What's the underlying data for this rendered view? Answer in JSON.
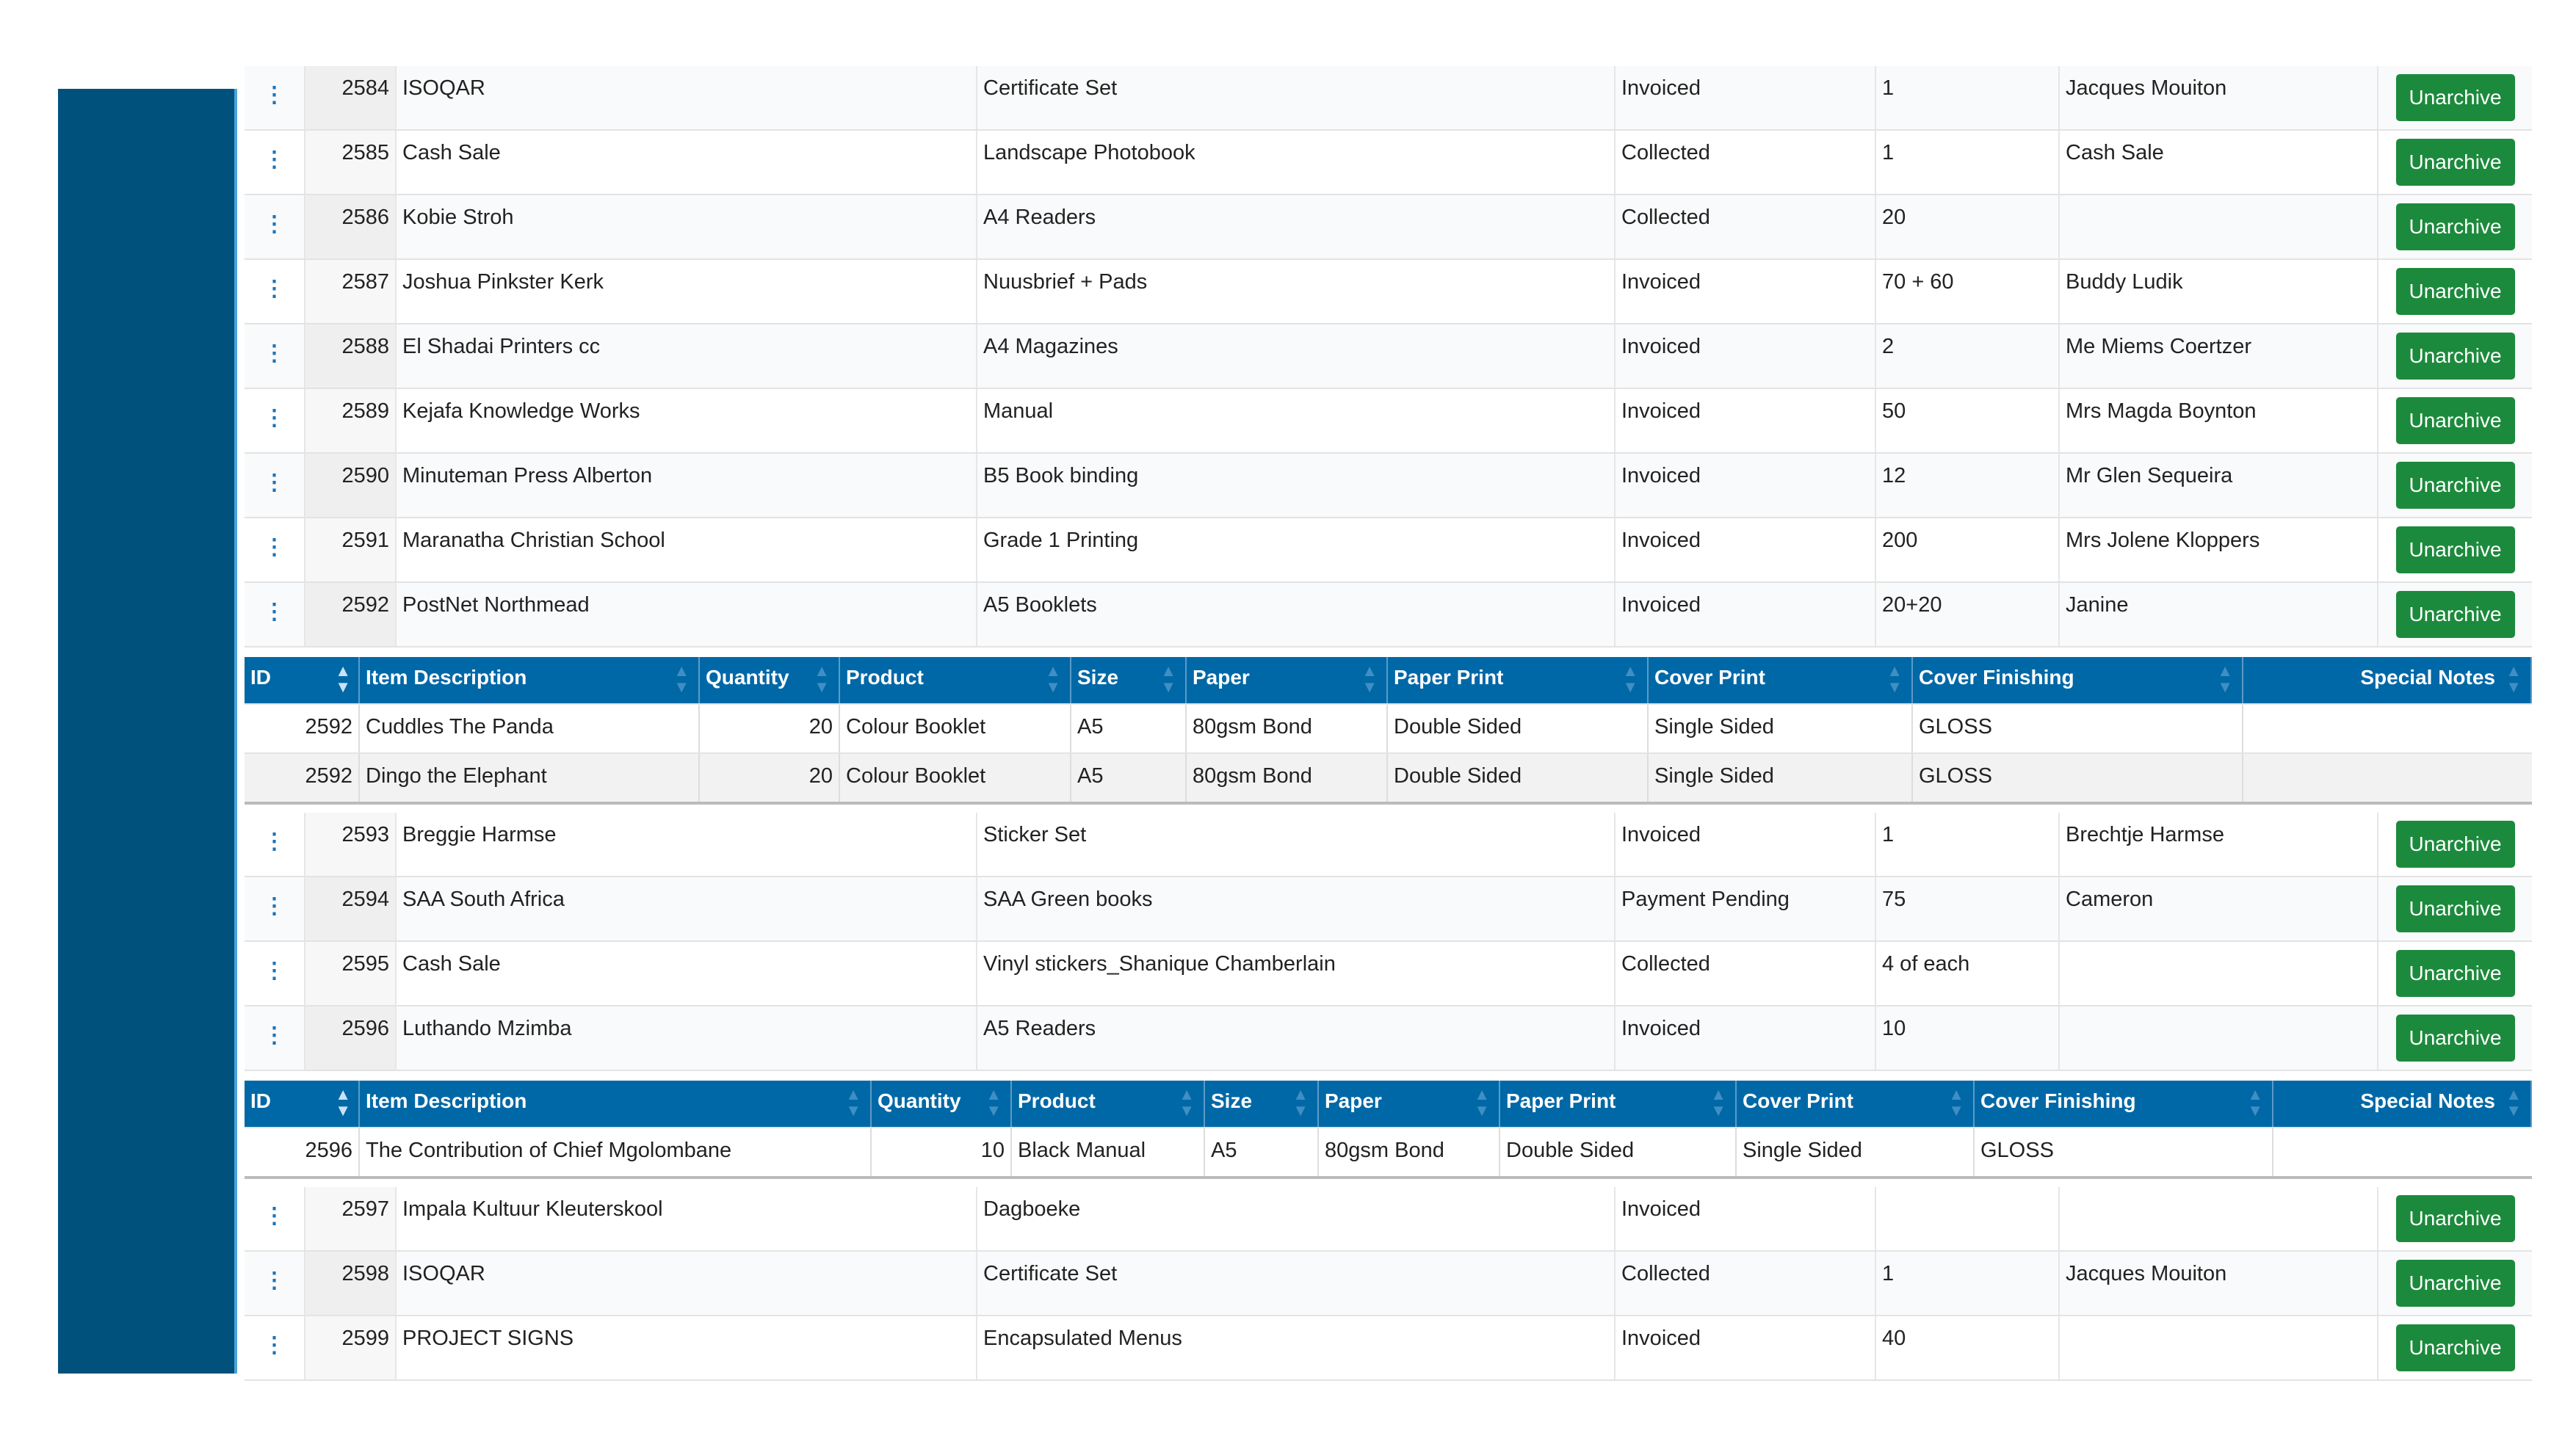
{
  "colors": {
    "sidebar": "#00527c",
    "header": "#0068a6",
    "button": "#1c8a3c"
  },
  "orders": [
    {
      "id": "2584",
      "customer": "ISOQAR",
      "product": "Certificate Set",
      "status": "Invoiced",
      "qty": "1",
      "contact": "Jacques Mouiton",
      "action": "Unarchive"
    },
    {
      "id": "2585",
      "customer": "Cash Sale",
      "product": "Landscape Photobook",
      "status": "Collected",
      "qty": "1",
      "contact": "Cash Sale",
      "action": "Unarchive"
    },
    {
      "id": "2586",
      "customer": "Kobie Stroh",
      "product": "A4 Readers",
      "status": "Collected",
      "qty": "20",
      "contact": "",
      "action": "Unarchive"
    },
    {
      "id": "2587",
      "customer": "Joshua Pinkster Kerk",
      "product": "Nuusbrief + Pads",
      "status": "Invoiced",
      "qty": "70 + 60",
      "contact": "Buddy Ludik",
      "action": "Unarchive"
    },
    {
      "id": "2588",
      "customer": "El Shadai Printers cc",
      "product": "A4 Magazines",
      "status": "Invoiced",
      "qty": "2",
      "contact": "Me Miems Coertzer",
      "action": "Unarchive"
    },
    {
      "id": "2589",
      "customer": "Kejafa Knowledge Works",
      "product": "Manual",
      "status": "Invoiced",
      "qty": "50",
      "contact": "Mrs Magda Boynton",
      "action": "Unarchive"
    },
    {
      "id": "2590",
      "customer": "Minuteman Press Alberton",
      "product": "B5 Book binding",
      "status": "Invoiced",
      "qty": "12",
      "contact": "Mr Glen Sequeira",
      "action": "Unarchive"
    },
    {
      "id": "2591",
      "customer": "Maranatha Christian School",
      "product": "Grade 1 Printing",
      "status": "Invoiced",
      "qty": "200",
      "contact": "Mrs Jolene Kloppers",
      "action": "Unarchive"
    },
    {
      "id": "2592",
      "customer": "PostNet Northmead",
      "product": "A5 Booklets",
      "status": "Invoiced",
      "qty": "20+20",
      "contact": "Janine",
      "action": "Unarchive",
      "items": [
        {
          "id": "2592",
          "desc": "Cuddles The Panda",
          "qty": "20",
          "product": "Colour Booklet",
          "size": "A5",
          "paper": "80gsm Bond",
          "paper_print": "Double Sided",
          "cover_print": "Single Sided",
          "cover_finishing": "GLOSS",
          "notes": ""
        },
        {
          "id": "2592",
          "desc": "Dingo the Elephant",
          "qty": "20",
          "product": "Colour Booklet",
          "size": "A5",
          "paper": "80gsm Bond",
          "paper_print": "Double Sided",
          "cover_print": "Single Sided",
          "cover_finishing": "GLOSS",
          "notes": ""
        }
      ]
    },
    {
      "id": "2593",
      "customer": "Breggie Harmse",
      "product": "Sticker Set",
      "status": "Invoiced",
      "qty": "1",
      "contact": "Brechtje Harmse",
      "action": "Unarchive"
    },
    {
      "id": "2594",
      "customer": "SAA South Africa",
      "product": "SAA Green books",
      "status": "Payment Pending",
      "qty": "75",
      "contact": "Cameron",
      "action": "Unarchive"
    },
    {
      "id": "2595",
      "customer": "Cash Sale",
      "product": "Vinyl stickers_Shanique Chamberlain",
      "status": "Collected",
      "qty": "4 of each",
      "contact": "",
      "action": "Unarchive"
    },
    {
      "id": "2596",
      "customer": "Luthando Mzimba",
      "product": "A5 Readers",
      "status": "Invoiced",
      "qty": "10",
      "contact": "",
      "action": "Unarchive",
      "items": [
        {
          "id": "2596",
          "desc": "The Contribution of Chief Mgolombane",
          "qty": "10",
          "product": "Black Manual",
          "size": "A5",
          "paper": "80gsm Bond",
          "paper_print": "Double Sided",
          "cover_print": "Single Sided",
          "cover_finishing": "GLOSS",
          "notes": ""
        }
      ]
    },
    {
      "id": "2597",
      "customer": "Impala Kultuur Kleuterskool",
      "product": "Dagboeke",
      "status": "Invoiced",
      "qty": "",
      "contact": "",
      "action": "Unarchive"
    },
    {
      "id": "2598",
      "customer": "ISOQAR",
      "product": "Certificate Set",
      "status": "Collected",
      "qty": "1",
      "contact": "Jacques Mouiton",
      "action": "Unarchive"
    },
    {
      "id": "2599",
      "customer": "PROJECT SIGNS",
      "product": "Encapsulated Menus",
      "status": "Invoiced",
      "qty": "40",
      "contact": "",
      "action": "Unarchive"
    }
  ],
  "item_columns": [
    "ID",
    "Item Description",
    "Quantity",
    "Product",
    "Size",
    "Paper",
    "Paper Print",
    "Cover Print",
    "Cover Finishing",
    "Special Notes"
  ],
  "kebab_glyph": "⋮",
  "sort_glyph": "▲▼"
}
